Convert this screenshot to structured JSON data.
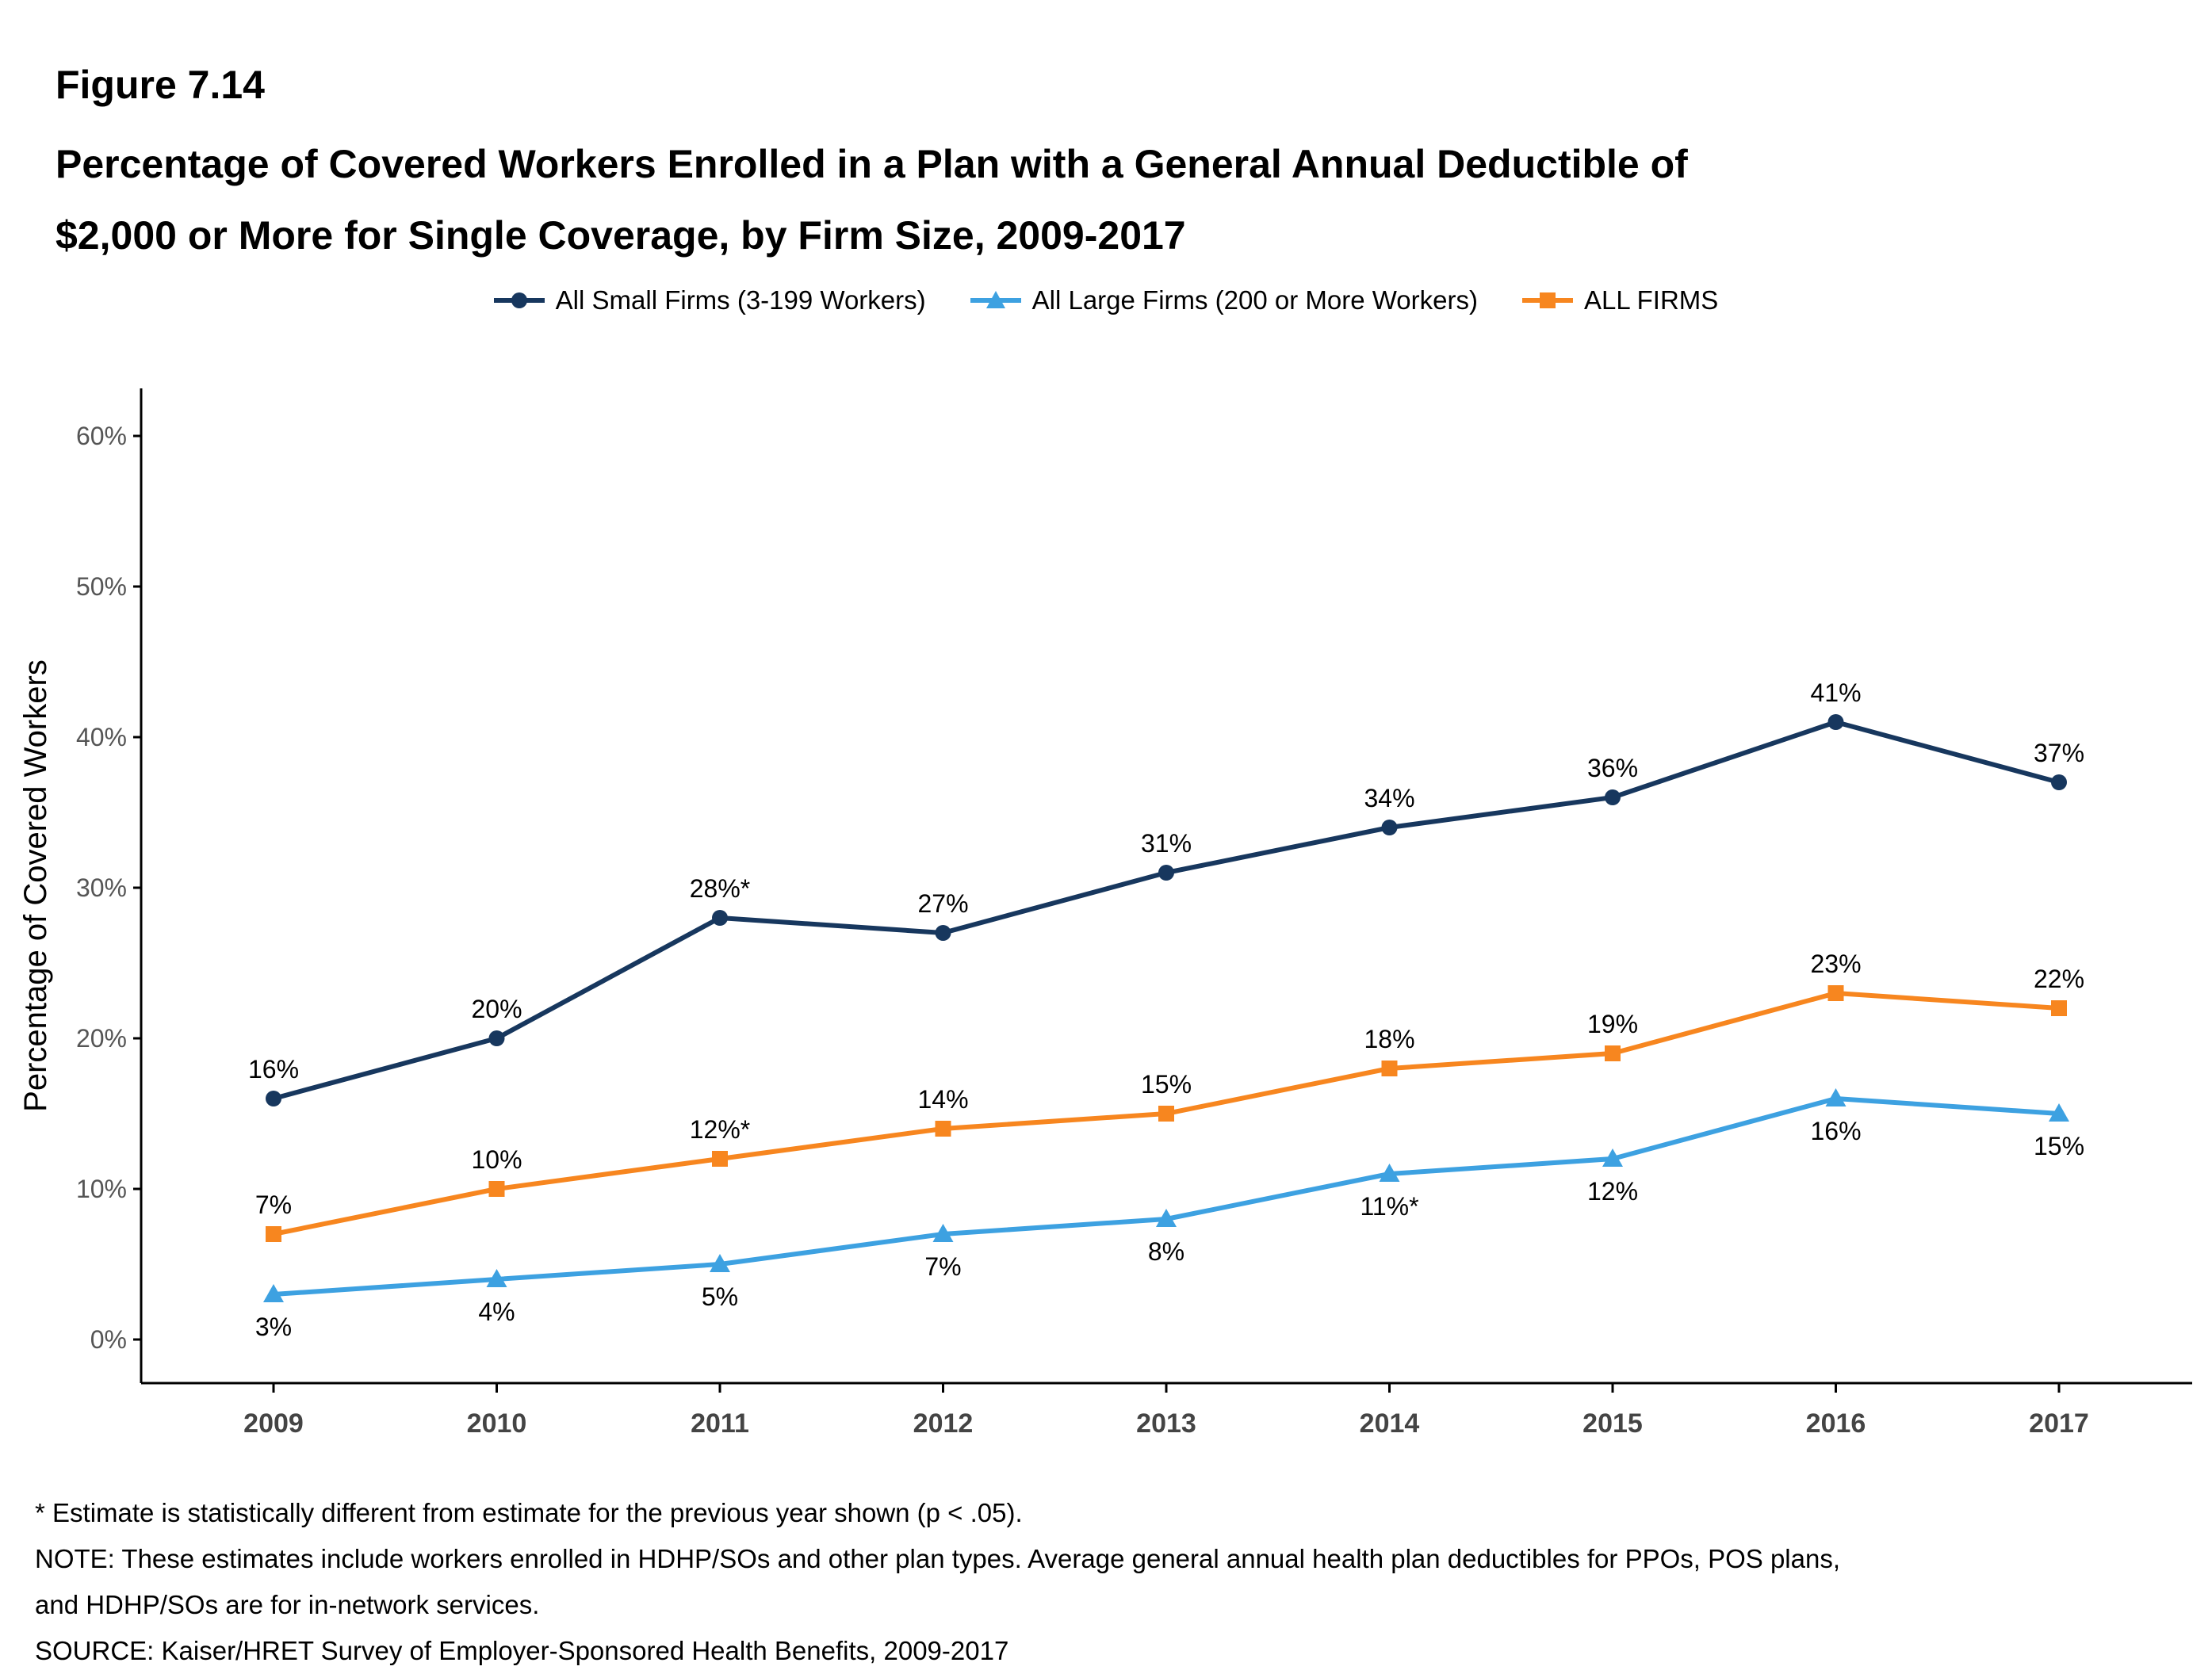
{
  "figure_label": "Figure 7.14",
  "title_lines": [
    "Percentage of Covered Workers Enrolled in a Plan with a General Annual Deductible of",
    "$2,000 or More for Single Coverage, by Firm Size, 2009-2017"
  ],
  "footnotes": [
    "* Estimate is statistically different from estimate for the previous year shown (p < .05).",
    "NOTE: These estimates include workers enrolled in HDHP/SOs and other plan types. Average general annual health plan deductibles for PPOs, POS plans,",
    "and HDHP/SOs are for in-network services.",
    "SOURCE: Kaiser/HRET Survey of Employer-Sponsored Health Benefits, 2009-2017"
  ],
  "chart_data": {
    "type": "line",
    "title": "Percentage of Covered Workers Enrolled in a Plan with a General Annual Deductible of $2,000 or More for Single Coverage, by Firm Size, 2009-2017",
    "xlabel": "",
    "ylabel": "Percentage of Covered Workers",
    "categories": [
      "2009",
      "2010",
      "2011",
      "2012",
      "2013",
      "2014",
      "2015",
      "2016",
      "2017"
    ],
    "ylim": [
      0,
      60
    ],
    "yticks": [
      0,
      10,
      20,
      30,
      40,
      50,
      60
    ],
    "ytick_labels": [
      "0%",
      "10%",
      "20%",
      "30%",
      "40%",
      "50%",
      "60%"
    ],
    "grid": false,
    "legend_position": "top-center",
    "series": [
      {
        "name": "All Small Firms (3-199 Workers)",
        "color": "#17375e",
        "marker": "circle",
        "label_position": "above",
        "values": [
          16,
          20,
          28,
          27,
          31,
          34,
          36,
          41,
          37
        ],
        "labels": [
          "16%",
          "20%",
          "28%*",
          "27%",
          "31%",
          "34%",
          "36%",
          "41%",
          "37%"
        ]
      },
      {
        "name": "All Large Firms (200 or More Workers)",
        "color": "#3da1e1",
        "marker": "triangle",
        "label_position": "below",
        "values": [
          3,
          4,
          5,
          7,
          8,
          11,
          12,
          16,
          15
        ],
        "labels": [
          "3%",
          "4%",
          "5%",
          "7%",
          "8%",
          "11%*",
          "12%",
          "16%",
          "15%"
        ]
      },
      {
        "name": "ALL FIRMS",
        "color": "#f7861f",
        "marker": "square",
        "label_position": "above",
        "values": [
          7,
          10,
          12,
          14,
          15,
          18,
          19,
          23,
          22
        ],
        "labels": [
          "7%",
          "10%",
          "12%*",
          "14%",
          "15%",
          "18%",
          "19%",
          "23%",
          "22%"
        ]
      }
    ]
  }
}
